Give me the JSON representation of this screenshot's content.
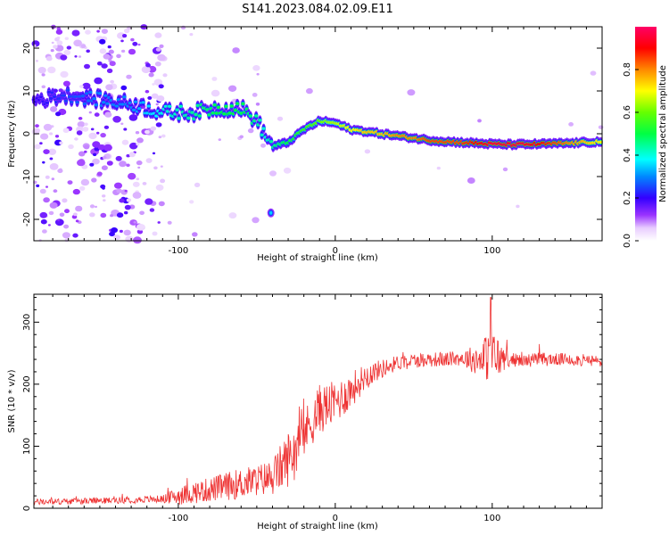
{
  "title": "S141.2023.084.02.09.E11",
  "colors": {
    "snr_line": "#ee3333",
    "ridge_low": "#5a00ff",
    "ridge_high": "#ff0000",
    "scatter": "#8a40ff"
  },
  "chart_data": [
    {
      "type": "heatmap",
      "xlabel": "Height of straight line (km)",
      "ylabel": "Frequency (Hz)",
      "xlim": [
        -192,
        170
      ],
      "ylim": [
        -25,
        25
      ],
      "xticks": [
        -100,
        0,
        100
      ],
      "yticks": [
        -20,
        -10,
        0,
        10,
        20
      ],
      "colorbar": {
        "label": "Normalized spectral amplitude",
        "range": [
          0,
          1
        ],
        "ticks": [
          "0.0",
          "0.2",
          "0.4",
          "0.6",
          "0.8"
        ],
        "colormap": "rainbow"
      },
      "ridge": {
        "description_points_x": [
          -190,
          -170,
          -150,
          -130,
          -110,
          -90,
          -75,
          -60,
          -50,
          -45,
          -40,
          -30,
          -20,
          -10,
          0,
          10,
          20,
          30,
          40,
          50,
          60,
          70,
          80,
          90,
          100,
          110,
          120,
          130,
          140,
          150,
          160,
          170
        ],
        "frequency": [
          8,
          9,
          8,
          7,
          5,
          5,
          6,
          6,
          3,
          0,
          -3,
          -2,
          1,
          3,
          2.5,
          1,
          0.5,
          0,
          -0.5,
          -1,
          -1.5,
          -1.8,
          -2,
          -2.2,
          -2.4,
          -2.5,
          -2.5,
          -2.4,
          -2.3,
          -2.2,
          -2,
          -1.8
        ],
        "amplitude": [
          0.2,
          0.25,
          0.3,
          0.3,
          0.4,
          0.45,
          0.5,
          0.5,
          0.45,
          0.4,
          0.45,
          0.5,
          0.55,
          0.6,
          0.65,
          0.7,
          0.75,
          0.75,
          0.8,
          0.8,
          0.85,
          0.85,
          0.85,
          0.9,
          0.95,
          0.95,
          0.95,
          0.9,
          0.85,
          0.8,
          0.75,
          0.7
        ]
      }
    },
    {
      "type": "line",
      "xlabel": "Height of straight line (km)",
      "ylabel": "SNR (10 * v/v)",
      "xlim": [
        -192,
        170
      ],
      "ylim": [
        0,
        345
      ],
      "xticks": [
        -100,
        0,
        100
      ],
      "yticks": [
        0,
        100,
        200,
        300
      ],
      "series": [
        {
          "x": [
            -192,
            -150,
            -110,
            -100,
            -80,
            -60,
            -50,
            -40,
            -30,
            -20,
            -10,
            0,
            10,
            20,
            30,
            40,
            50,
            60,
            70,
            80,
            90,
            100,
            110,
            120,
            130,
            140,
            150,
            160,
            170
          ],
          "y": [
            10,
            12,
            15,
            20,
            30,
            40,
            45,
            50,
            80,
            120,
            160,
            170,
            190,
            215,
            225,
            235,
            238,
            240,
            240,
            242,
            240,
            245,
            240,
            238,
            240,
            240,
            240,
            238,
            236
          ],
          "noise": [
            5,
            5,
            6,
            15,
            20,
            25,
            25,
            30,
            45,
            40,
            40,
            35,
            30,
            20,
            15,
            12,
            12,
            12,
            12,
            12,
            25,
            45,
            12,
            10,
            12,
            10,
            10,
            10,
            10
          ]
        }
      ]
    }
  ]
}
